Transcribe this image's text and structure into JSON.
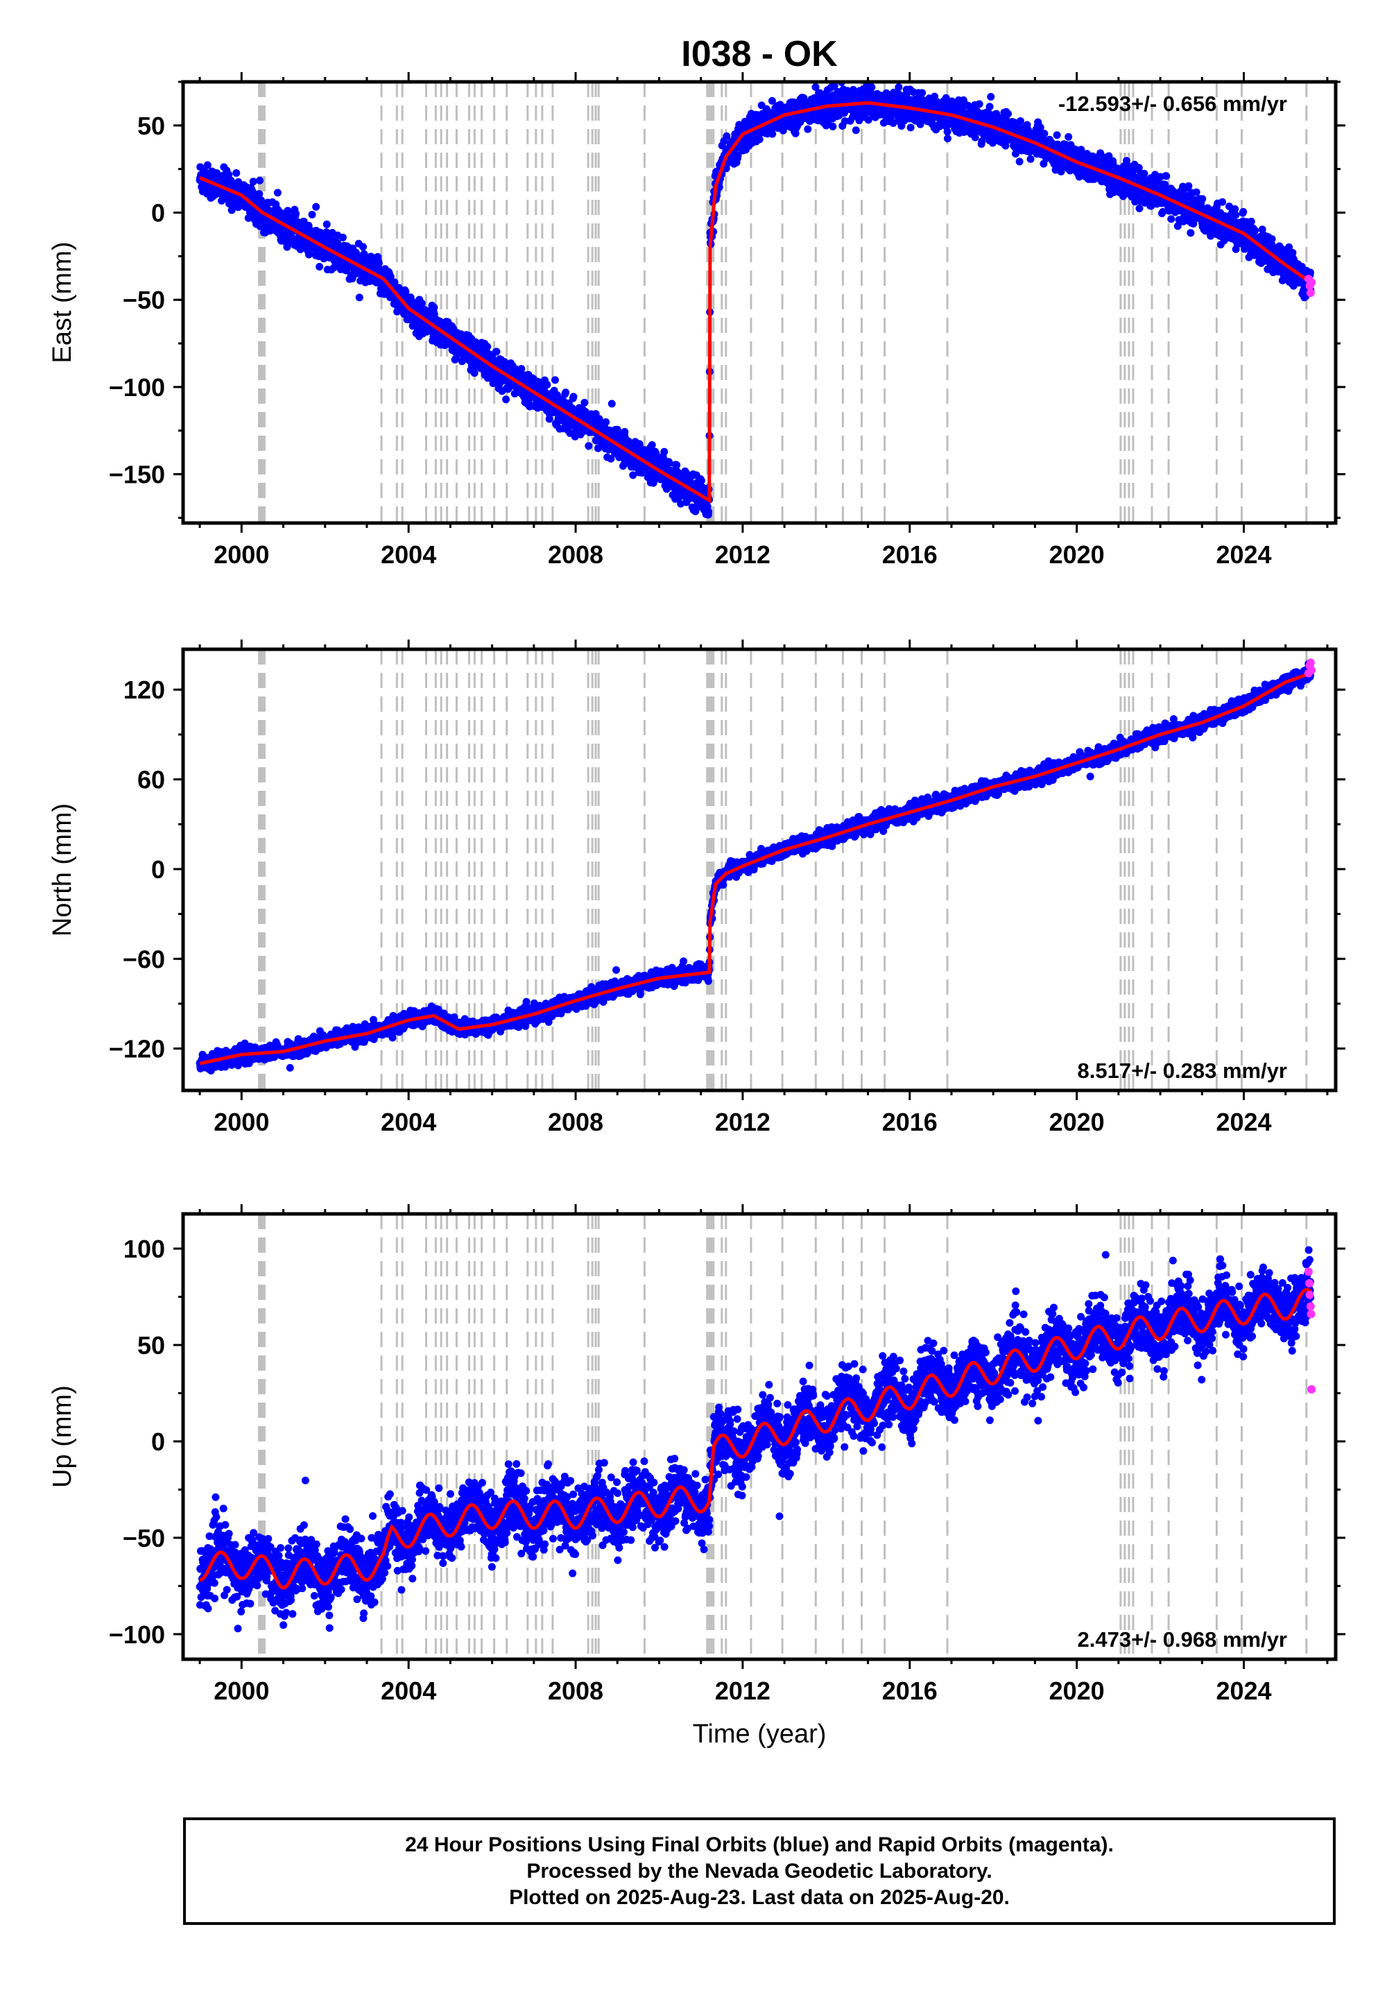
{
  "colors": {
    "final_orbits": "#0000ff",
    "rapid_orbits": "#ff33ff",
    "model": "#ff0000",
    "event_lines": "#bfbfbf",
    "axes": "#000000"
  },
  "chart_data": [
    {
      "type": "scatter",
      "title": "I038 - OK",
      "xlabel": "",
      "ylabel": "East (mm)",
      "xlim": [
        1998.6,
        2026.2
      ],
      "ylim": [
        -178,
        75
      ],
      "x_ticks": [
        "2000",
        "2004",
        "2008",
        "2012",
        "2016",
        "2020",
        "2024"
      ],
      "y_ticks": [
        "50",
        "0",
        "−50",
        "−100",
        "−150"
      ],
      "y_tick_values": [
        50,
        0,
        -50,
        -100,
        -150
      ],
      "velocity_label": "-12.593+/- 0.656 mm/yr",
      "velocity_position": "top-right",
      "grid": false,
      "series": [
        {
          "name": "24 Hour Positions (Final Orbits)",
          "color": "#0000ff",
          "trend_x": [
            1999.0,
            2000.0,
            2000.5,
            2002.0,
            2003.4,
            2004.0,
            2006.0,
            2008.0,
            2010.0,
            2011.2,
            2011.22,
            2011.35,
            2011.6,
            2012.0,
            2013.0,
            2014.0,
            2015.0,
            2016.0,
            2017.0,
            2018.0,
            2019.0,
            2020.0,
            2021.0,
            2022.0,
            2023.0,
            2024.0,
            2025.0,
            2025.6
          ],
          "trend_y": [
            20,
            10,
            0,
            -20,
            -38,
            -55,
            -88,
            -118,
            -148,
            -165,
            -20,
            15,
            32,
            45,
            56,
            61,
            63,
            60,
            56,
            49,
            40,
            29,
            20,
            10,
            -1,
            -12,
            -30,
            -40
          ],
          "scatter_sd": 4.5
        },
        {
          "name": "Rapid Orbits",
          "color": "#ff33ff",
          "x": [
            2025.55,
            2025.58,
            2025.6,
            2025.62
          ],
          "y": [
            -38,
            -42,
            -46,
            -40
          ]
        },
        {
          "name": "model",
          "color": "#ff0000",
          "x": [
            1999.0,
            2000.0,
            2000.5,
            2002.0,
            2003.4,
            2004.0,
            2006.0,
            2008.0,
            2010.0,
            2011.2,
            2011.22,
            2011.35,
            2011.6,
            2012.0,
            2013.0,
            2014.0,
            2015.0,
            2016.0,
            2017.0,
            2018.0,
            2019.0,
            2020.0,
            2021.0,
            2022.0,
            2023.0,
            2024.0,
            2025.0,
            2025.6
          ],
          "y": [
            20,
            10,
            0,
            -20,
            -38,
            -55,
            -88,
            -118,
            -148,
            -165,
            -20,
            15,
            32,
            45,
            56,
            61,
            63,
            60,
            56,
            49,
            40,
            29,
            20,
            10,
            -1,
            -12,
            -30,
            -40
          ]
        }
      ]
    },
    {
      "type": "scatter",
      "title": "",
      "xlabel": "",
      "ylabel": "North (mm)",
      "xlim": [
        1998.6,
        2026.2
      ],
      "ylim": [
        -148,
        147
      ],
      "x_ticks": [
        "2000",
        "2004",
        "2008",
        "2012",
        "2016",
        "2020",
        "2024"
      ],
      "y_ticks": [
        "120",
        "60",
        "0",
        "−60",
        "−120"
      ],
      "y_tick_values": [
        120,
        60,
        0,
        -60,
        -120
      ],
      "velocity_label": "8.517+/- 0.283 mm/yr",
      "velocity_position": "bottom-right",
      "grid": false,
      "series": [
        {
          "name": "24 Hour Positions (Final Orbits)",
          "color": "#0000ff",
          "trend_x": [
            1999.0,
            2000.0,
            2001.0,
            2002.0,
            2003.0,
            2004.0,
            2004.6,
            2005.2,
            2006.0,
            2007.0,
            2008.0,
            2009.0,
            2010.0,
            2011.2,
            2011.22,
            2011.35,
            2011.6,
            2012.0,
            2013.0,
            2014.0,
            2015.0,
            2016.0,
            2017.0,
            2018.0,
            2019.0,
            2020.0,
            2021.0,
            2022.0,
            2023.0,
            2024.0,
            2025.0,
            2025.6
          ],
          "trend_y": [
            -130,
            -124,
            -122,
            -115,
            -110,
            -101,
            -98,
            -107,
            -104,
            -97,
            -88,
            -80,
            -73,
            -69,
            -35,
            -10,
            -3,
            2,
            13,
            21,
            30,
            38,
            46,
            55,
            62,
            71,
            80,
            90,
            98,
            109,
            125,
            131
          ],
          "scatter_sd": 2.5
        },
        {
          "name": "Rapid Orbits",
          "color": "#ff33ff",
          "x": [
            2025.55,
            2025.58,
            2025.6,
            2025.62
          ],
          "y": [
            131,
            136,
            138,
            133
          ]
        },
        {
          "name": "model",
          "color": "#ff0000",
          "x": [
            1999.0,
            2000.0,
            2001.0,
            2002.0,
            2003.0,
            2004.0,
            2004.6,
            2005.2,
            2006.0,
            2007.0,
            2008.0,
            2009.0,
            2010.0,
            2011.2,
            2011.22,
            2011.35,
            2011.6,
            2012.0,
            2013.0,
            2014.0,
            2015.0,
            2016.0,
            2017.0,
            2018.0,
            2019.0,
            2020.0,
            2021.0,
            2022.0,
            2023.0,
            2024.0,
            2025.0,
            2025.6
          ],
          "y": [
            -130,
            -124,
            -122,
            -115,
            -110,
            -101,
            -98,
            -107,
            -104,
            -97,
            -88,
            -80,
            -73,
            -69,
            -35,
            -10,
            -3,
            2,
            13,
            21,
            30,
            38,
            46,
            55,
            62,
            71,
            80,
            90,
            98,
            109,
            125,
            131
          ]
        }
      ]
    },
    {
      "type": "scatter",
      "title": "",
      "xlabel": "Time (year)",
      "ylabel": "Up (mm)",
      "xlim": [
        1998.6,
        2026.2
      ],
      "ylim": [
        -113,
        118
      ],
      "x_ticks": [
        "2000",
        "2004",
        "2008",
        "2012",
        "2016",
        "2020",
        "2024"
      ],
      "y_ticks": [
        "100",
        "50",
        "0",
        "−50",
        "−100"
      ],
      "y_tick_values": [
        100,
        50,
        0,
        -50,
        -100
      ],
      "velocity_label": "2.473+/- 0.968 mm/yr",
      "velocity_position": "bottom-right",
      "grid": false,
      "series": [
        {
          "name": "24 Hour Positions (Final Orbits)",
          "color": "#0000ff",
          "trend_x": [
            1999.0,
            2000.0,
            2001.0,
            2002.0,
            2003.4,
            2003.6,
            2005.0,
            2006.0,
            2008.0,
            2010.0,
            2011.2,
            2011.3,
            2012.0,
            2014.0,
            2016.0,
            2018.0,
            2020.0,
            2022.0,
            2024.0,
            2025.6
          ],
          "trend_y": [
            -65,
            -64,
            -69,
            -67,
            -64,
            -50,
            -42,
            -38,
            -38,
            -32,
            -29,
            -5,
            -1,
            12,
            24,
            37,
            50,
            60,
            68,
            72
          ],
          "seasonal_amplitude": 7,
          "scatter_sd": 8
        },
        {
          "name": "Rapid Orbits",
          "color": "#ff33ff",
          "x": [
            2025.55,
            2025.57,
            2025.58,
            2025.6,
            2025.61,
            2025.62
          ],
          "y": [
            88,
            82,
            76,
            70,
            66,
            27
          ]
        },
        {
          "name": "model",
          "color": "#ff0000",
          "x": [
            1999.0,
            2000.0,
            2001.0,
            2002.0,
            2003.4,
            2003.6,
            2005.0,
            2006.0,
            2008.0,
            2010.0,
            2011.2,
            2011.3,
            2012.0,
            2014.0,
            2016.0,
            2018.0,
            2020.0,
            2022.0,
            2024.0,
            2025.6
          ],
          "y": [
            -65,
            -64,
            -69,
            -67,
            -64,
            -50,
            -42,
            -38,
            -38,
            -32,
            -29,
            -5,
            -1,
            12,
            24,
            37,
            50,
            60,
            68,
            72
          ]
        }
      ]
    }
  ],
  "event_lines": [
    2000.42,
    2000.46,
    2000.5,
    2000.55,
    2003.35,
    2003.72,
    2003.85,
    2004.42,
    2004.65,
    2004.78,
    2004.92,
    2005.15,
    2005.45,
    2005.58,
    2005.75,
    2006.05,
    2006.35,
    2006.85,
    2007.05,
    2007.2,
    2007.45,
    2008.3,
    2008.4,
    2008.48,
    2008.55,
    2009.65,
    2011.15,
    2011.2,
    2011.25,
    2011.3,
    2011.5,
    2011.6,
    2012.2,
    2012.95,
    2013.75,
    2014.4,
    2014.85,
    2015.4,
    2016.9,
    2021.05,
    2021.15,
    2021.25,
    2021.35,
    2021.8,
    2022.2,
    2023.35,
    2023.95,
    2025.5
  ],
  "caption": {
    "line1": "24 Hour Positions Using Final Orbits (blue) and Rapid Orbits (magenta).",
    "line2": "Processed by the Nevada Geodetic Laboratory.",
    "line3": "Plotted on 2025-Aug-23. Last data on 2025-Aug-20."
  }
}
